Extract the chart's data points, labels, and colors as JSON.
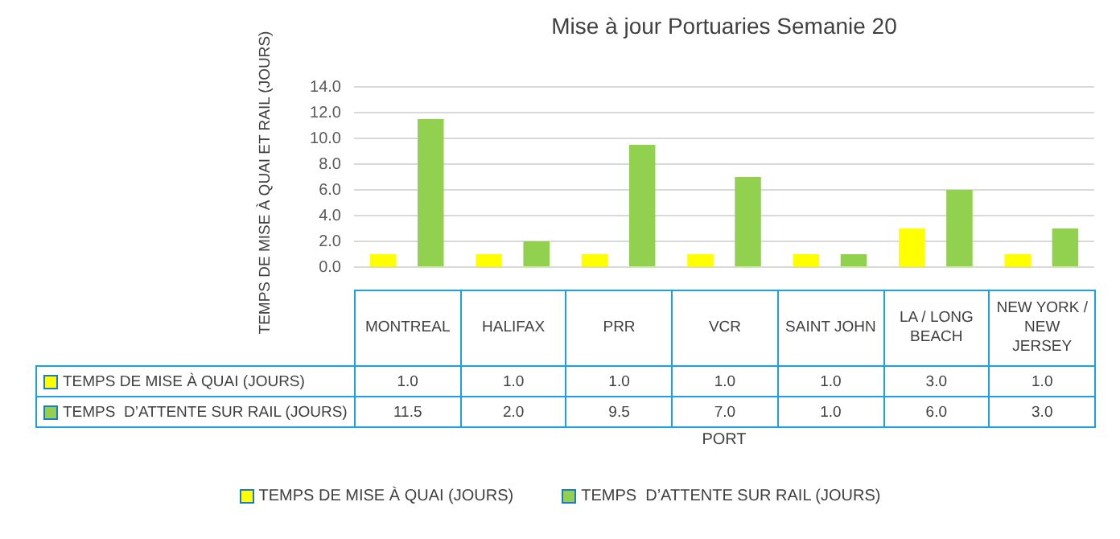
{
  "chart_data": {
    "type": "bar",
    "title": "Mise à jour Portuaries Semanie 20",
    "xlabel": "PORT",
    "ylabel": "TEMPS DE MISE À QUAI ET RAIL (JOURS)",
    "categories": [
      "MONTREAL",
      "HALIFAX",
      "PRR",
      "VCR",
      "SAINT JOHN",
      "LA / LONG BEACH",
      "NEW YORK / NEW JERSEY"
    ],
    "series": [
      {
        "name": "TEMPS DE MISE À QUAI (JOURS)",
        "color": "#ffff00",
        "values": [
          1.0,
          1.0,
          1.0,
          1.0,
          1.0,
          3.0,
          1.0
        ],
        "value_labels": [
          "1.0",
          "1.0",
          "1.0",
          "1.0",
          "1.0",
          "3.0",
          "1.0"
        ]
      },
      {
        "name": "TEMPS  D’ATTENTE SUR RAIL (JOURS)",
        "color": "#92d050",
        "values": [
          11.5,
          2.0,
          9.5,
          7.0,
          1.0,
          6.0,
          3.0
        ],
        "value_labels": [
          "11.5",
          "2.0",
          "9.5",
          "7.0",
          "1.0",
          "6.0",
          "3.0"
        ]
      }
    ],
    "ylim": [
      0,
      14
    ],
    "yticks": [
      {
        "value": 0,
        "label": "0.0"
      },
      {
        "value": 2,
        "label": "2.0"
      },
      {
        "value": 4,
        "label": "4.0"
      },
      {
        "value": 6,
        "label": "6.0"
      },
      {
        "value": 8,
        "label": "8.0"
      },
      {
        "value": 10,
        "label": "10.0"
      },
      {
        "value": 12,
        "label": "12.0"
      },
      {
        "value": 14,
        "label": "14.0"
      }
    ],
    "grid": "y",
    "legend": "bottom"
  }
}
